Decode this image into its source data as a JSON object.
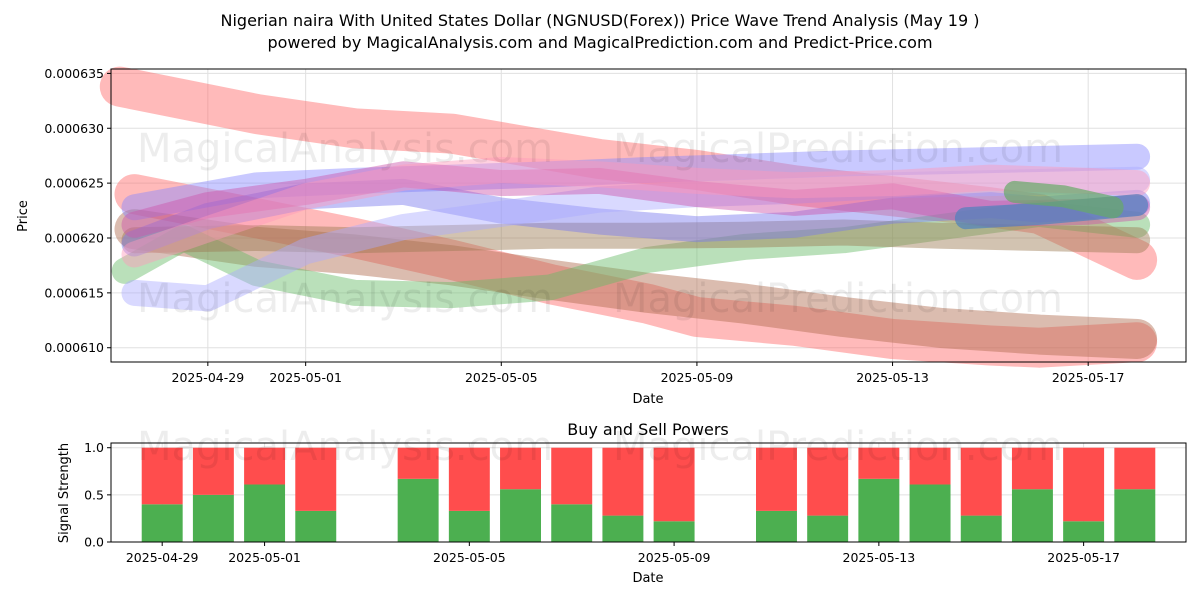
{
  "title_line1": "Nigerian naira With United States Dollar (NGNUSD(Forex)) Price Wave Trend Analysis (May 19 )",
  "title_line2": "powered by MagicalAnalysis.com and MagicalPrediction.com and Predict-Price.com",
  "watermarks": {
    "left": "MagicalAnalysis.com",
    "right": "MagicalPrediction.com"
  },
  "chart_data": [
    {
      "type": "area",
      "title": "",
      "xlabel": "Date",
      "ylabel": "Price",
      "xlim": [
        -1.98,
        20.0
      ],
      "ylim": [
        0.0006087,
        0.0006354
      ],
      "grid": true,
      "x_ticks": [
        {
          "day": 0,
          "label": "2025-04-29"
        },
        {
          "day": 2,
          "label": "2025-05-01"
        },
        {
          "day": 6,
          "label": "2025-05-05"
        },
        {
          "day": 10,
          "label": "2025-05-09"
        },
        {
          "day": 14,
          "label": "2025-05-13"
        },
        {
          "day": 18,
          "label": "2025-05-17"
        }
      ],
      "y_ticks": [
        "0.000610",
        "0.000615",
        "0.000620",
        "0.000625",
        "0.000630",
        "0.000635"
      ],
      "y_tick_values": [
        0.00061,
        0.000615,
        0.00062,
        0.000625,
        0.00063,
        0.000635
      ],
      "series": [
        {
          "name": "red-descending-upper",
          "color": "#ff6666",
          "x": [
            -1.8,
            1,
            3,
            5,
            8,
            10,
            12,
            14,
            16,
            17,
            19.0
          ],
          "values": [
            0.0006338,
            0.0006313,
            0.00063,
            0.0006295,
            0.0006272,
            0.0006262,
            0.0006248,
            0.0006238,
            0.0006228,
            0.0006222,
            0.000618
          ]
        },
        {
          "name": "red-descending-lower",
          "color": "#ff6666",
          "x": [
            -1.5,
            1,
            3,
            5,
            7,
            9,
            10,
            12,
            14,
            16,
            17,
            19.0
          ],
          "values": [
            0.000624,
            0.0006218,
            0.00062,
            0.000618,
            0.0006158,
            0.000614,
            0.0006128,
            0.000612,
            0.0006108,
            0.0006102,
            0.00061,
            0.0006105
          ]
        },
        {
          "name": "brown-descending",
          "color": "#b06b4e",
          "x": [
            -1.5,
            1,
            3,
            5,
            7,
            9,
            11,
            13,
            15,
            17,
            19.0
          ],
          "values": [
            0.0006208,
            0.0006192,
            0.0006185,
            0.0006175,
            0.0006162,
            0.000615,
            0.000614,
            0.0006128,
            0.0006118,
            0.0006112,
            0.0006108
          ]
        },
        {
          "name": "green-rising",
          "color": "#66bb66",
          "x": [
            -1.7,
            -0.5,
            1,
            3,
            5,
            7,
            9,
            11,
            13,
            15,
            17,
            19.0
          ],
          "values": [
            0.000617,
            0.00062,
            0.0006168,
            0.000615,
            0.0006148,
            0.0006155,
            0.000618,
            0.0006192,
            0.0006198,
            0.000621,
            0.0006222,
            0.0006212
          ]
        },
        {
          "name": "brown-flat",
          "color": "#9b7a53",
          "x": [
            -1.5,
            1,
            3,
            5,
            7,
            9,
            11,
            13,
            15,
            17,
            19.0
          ],
          "values": [
            0.0006198,
            0.00062,
            0.0006198,
            0.00062,
            0.0006202,
            0.0006202,
            0.0006203,
            0.0006205,
            0.0006202,
            0.00062,
            0.0006198
          ]
        },
        {
          "name": "blue-upper",
          "color": "#8888ff",
          "x": [
            -1.5,
            1,
            3,
            5,
            7,
            9,
            11,
            13,
            15,
            17,
            19.0
          ],
          "values": [
            0.0006228,
            0.0006248,
            0.0006252,
            0.0006255,
            0.0006258,
            0.0006262,
            0.0006265,
            0.0006268,
            0.000627,
            0.0006272,
            0.0006274
          ]
        },
        {
          "name": "blue-mid",
          "color": "#7777ee",
          "x": [
            -1.5,
            0,
            2,
            4,
            6,
            8,
            10,
            12,
            14,
            16,
            17,
            19.0
          ],
          "values": [
            0.0006195,
            0.000622,
            0.0006238,
            0.0006242,
            0.0006225,
            0.0006215,
            0.0006208,
            0.0006212,
            0.0006225,
            0.000623,
            0.0006226,
            0.0006232
          ]
        },
        {
          "name": "blue-lower",
          "color": "#aaaaff",
          "x": [
            -1.5,
            0,
            2,
            4,
            6,
            8,
            10,
            12,
            14,
            16,
            18,
            19.0
          ],
          "values": [
            0.000615,
            0.0006145,
            0.0006188,
            0.000621,
            0.0006222,
            0.0006235,
            0.000624,
            0.0006243,
            0.0006248,
            0.000625,
            0.0006252,
            0.0006253
          ]
        },
        {
          "name": "magenta-wave",
          "color": "#cc55aa",
          "x": [
            -1.5,
            0,
            2,
            4,
            6,
            8,
            10,
            12,
            14,
            16,
            18,
            19.0
          ],
          "values": [
            0.0006212,
            0.000623,
            0.0006242,
            0.0006258,
            0.000625,
            0.0006252,
            0.000624,
            0.0006232,
            0.0006238,
            0.0006222,
            0.0006224,
            0.0006228
          ]
        },
        {
          "name": "pink-wave",
          "color": "#ff99bb",
          "x": [
            -1.5,
            0,
            2,
            4,
            6,
            8,
            10,
            12,
            14,
            16,
            18,
            19.0
          ],
          "values": [
            0.0006185,
            0.0006208,
            0.0006238,
            0.0006255,
            0.0006262,
            0.0006258,
            0.0006252,
            0.0006248,
            0.000625,
            0.0006255,
            0.0006252,
            0.000625
          ]
        },
        {
          "name": "steel-blue-arrow",
          "color": "#4f81bd",
          "x": [
            15.5,
            17,
            18.5,
            19.0
          ],
          "values": [
            0.0006218,
            0.0006222,
            0.0006228,
            0.000623
          ]
        },
        {
          "name": "green-arrow",
          "color": "#66aa66",
          "x": [
            16.5,
            17.5,
            18.5
          ],
          "values": [
            0.0006242,
            0.0006238,
            0.0006228
          ]
        }
      ]
    },
    {
      "type": "bar",
      "title": "Buy and Sell Powers",
      "xlabel": "Date",
      "ylabel": "Signal Strength",
      "xlim": [
        -1.0,
        20.0
      ],
      "ylim": [
        0,
        1.05
      ],
      "grid": true,
      "x_ticks": [
        {
          "day": 0,
          "label": "2025-04-29"
        },
        {
          "day": 2,
          "label": "2025-05-01"
        },
        {
          "day": 6,
          "label": "2025-05-05"
        },
        {
          "day": 10,
          "label": "2025-05-09"
        },
        {
          "day": 14,
          "label": "2025-05-13"
        },
        {
          "day": 18,
          "label": "2025-05-17"
        }
      ],
      "y_ticks": [
        "0.0",
        "0.5",
        "1.0"
      ],
      "y_tick_values": [
        0,
        0.5,
        1.0
      ],
      "colors": {
        "buy": "#4caf50",
        "sell": "#ff4d4d"
      },
      "series": [
        {
          "name": "Buy",
          "days": [
            0,
            1,
            2,
            3,
            5,
            6,
            7,
            8,
            9,
            10,
            12,
            13,
            14,
            15,
            16,
            17,
            18,
            19
          ],
          "values": [
            0.4,
            0.5,
            0.61,
            0.33,
            0.67,
            0.33,
            0.56,
            0.4,
            0.28,
            0.22,
            0.33,
            0.28,
            0.67,
            0.61,
            0.28,
            0.56,
            0.22,
            0.56
          ]
        },
        {
          "name": "Sell",
          "days": [
            0,
            1,
            2,
            3,
            5,
            6,
            7,
            8,
            9,
            10,
            12,
            13,
            14,
            15,
            16,
            17,
            18,
            19
          ],
          "values": [
            0.6,
            0.5,
            0.39,
            0.67,
            0.33,
            0.67,
            0.44,
            0.6,
            0.72,
            0.78,
            0.67,
            0.72,
            0.33,
            0.39,
            0.72,
            0.44,
            0.78,
            0.44
          ]
        }
      ]
    }
  ]
}
